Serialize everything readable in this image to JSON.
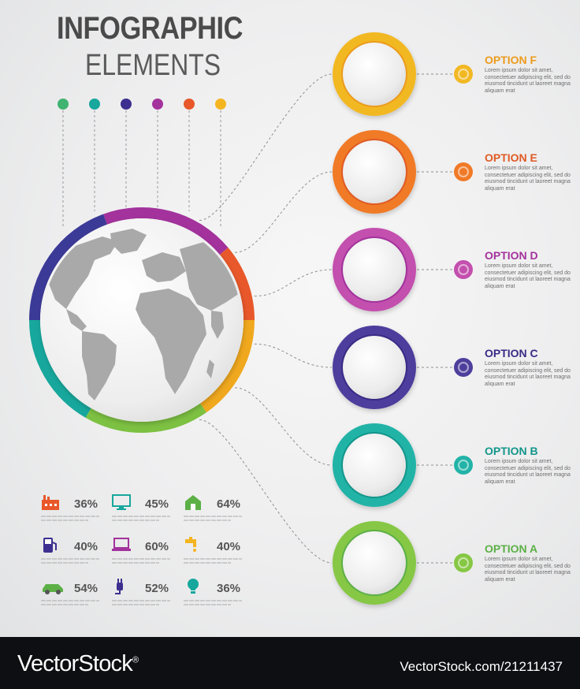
{
  "header": {
    "title_line1": "INFOGRAPHIC",
    "title_line2": "ELEMENTS"
  },
  "top_dots": [
    "#3fb36f",
    "#17a79c",
    "#3c2f8f",
    "#a3329c",
    "#e8582a",
    "#f5b521"
  ],
  "globe_ring_colors": [
    "#a3329c",
    "#e8582a",
    "#f0a81e",
    "#7dc142",
    "#17a79c",
    "#3c3a97"
  ],
  "options": [
    {
      "label": "OPTION F",
      "color": "#f2b824",
      "dark": "#ec9b1c",
      "text": "Lorem ipsum dolor sit amet, consectetuer adipiscing elit, sed do eiusmod tincidunt ut laoreet magna aliquam erat"
    },
    {
      "label": "OPTION E",
      "color": "#f07a27",
      "dark": "#e05a24",
      "text": "Lorem ipsum dolor sit amet, consectetuer adipiscing elit, sed do eiusmod tincidunt ut laoreet magna aliquam erat"
    },
    {
      "label": "OPTION D",
      "color": "#c34fae",
      "dark": "#a3329c",
      "text": "Lorem ipsum dolor sit amet, consectetuer adipiscing elit, sed do eiusmod tincidunt ut laoreet magna aliquam erat"
    },
    {
      "label": "OPTION C",
      "color": "#4e3e9c",
      "dark": "#3a2b85",
      "text": "Lorem ipsum dolor sit amet, consectetuer adipiscing elit, sed do eiusmod tincidunt ut laoreet magna aliquam erat"
    },
    {
      "label": "OPTION B",
      "color": "#22b3a7",
      "dark": "#13968b",
      "text": "Lorem ipsum dolor sit amet, consectetuer adipiscing elit, sed do eiusmod tincidunt ut laoreet magna aliquam erat"
    },
    {
      "label": "OPTION A",
      "color": "#86c744",
      "dark": "#5cb046",
      "text": "Lorem ipsum dolor sit amet, consectetuer adipiscing elit, sed do eiusmod tincidunt ut laoreet magna aliquam erat"
    }
  ],
  "stats": [
    {
      "icon": "factory-icon",
      "value": "36%",
      "color": "#e8582a"
    },
    {
      "icon": "monitor-icon",
      "value": "45%",
      "color": "#17a79c"
    },
    {
      "icon": "house-icon",
      "value": "64%",
      "color": "#5cb046"
    },
    {
      "icon": "fuel-pump-icon",
      "value": "40%",
      "color": "#3c2f8f"
    },
    {
      "icon": "laptop-icon",
      "value": "60%",
      "color": "#a3329c"
    },
    {
      "icon": "faucet-icon",
      "value": "40%",
      "color": "#f5b521"
    },
    {
      "icon": "car-icon",
      "value": "54%",
      "color": "#5cb046"
    },
    {
      "icon": "plug-icon",
      "value": "52%",
      "color": "#3c2f8f"
    },
    {
      "icon": "lightbulb-icon",
      "value": "36%",
      "color": "#17a79c"
    }
  ],
  "footer": {
    "brand": "VectorStock",
    "registered": "®",
    "image_id": "VectorStock.com/21211437"
  }
}
